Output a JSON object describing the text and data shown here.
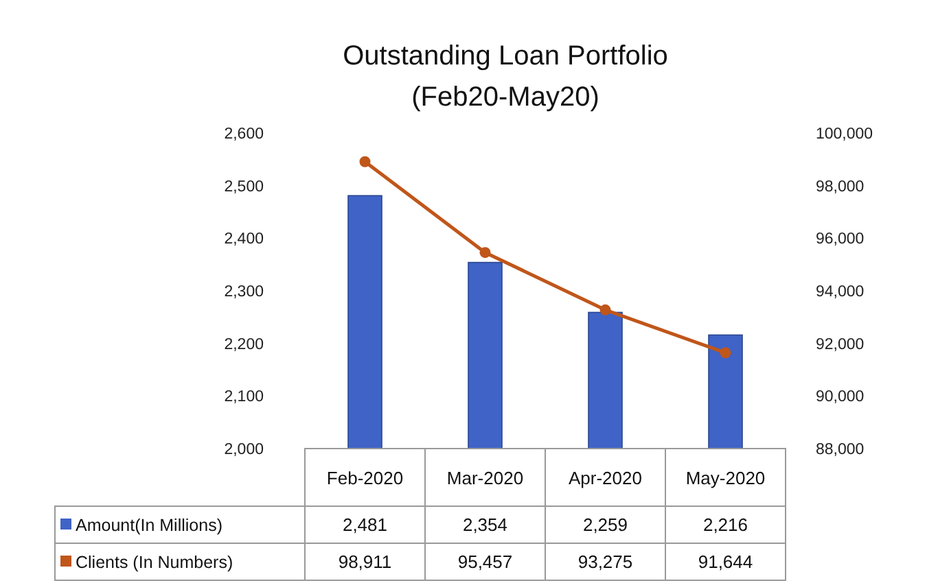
{
  "chart_data": {
    "type": "bar",
    "title": "Outstanding Loan Portfolio",
    "subtitle": "(Feb20-May20)",
    "categories": [
      "Feb-2020",
      "Mar-2020",
      "Apr-2020",
      "May-2020"
    ],
    "series": [
      {
        "name": "Amount(In Millions)",
        "color": "#3f63c6",
        "values": [
          2481,
          2354,
          2259,
          2216
        ],
        "value_labels": [
          "2,481",
          "2,354",
          "2,259",
          "2,216"
        ]
      },
      {
        "name": "Clients (In Numbers)",
        "type": "line",
        "axis": "y2",
        "color": "#c0561a",
        "values": [
          98911,
          95457,
          93275,
          91644
        ],
        "value_labels": [
          "98,911",
          "95,457",
          "93,275",
          "91,644"
        ]
      }
    ],
    "ylim": [
      2000,
      2600
    ],
    "yticks": [
      {
        "value": 2000,
        "label": "2,000"
      },
      {
        "value": 2100,
        "label": "2,100"
      },
      {
        "value": 2200,
        "label": "2,200"
      },
      {
        "value": 2300,
        "label": "2,300"
      },
      {
        "value": 2400,
        "label": "2,400"
      },
      {
        "value": 2500,
        "label": "2,500"
      },
      {
        "value": 2600,
        "label": "2,600"
      }
    ],
    "y2lim": [
      88000,
      100000
    ],
    "y2ticks": [
      {
        "value": 88000,
        "label": "88,000"
      },
      {
        "value": 90000,
        "label": "90,000"
      },
      {
        "value": 92000,
        "label": "92,000"
      },
      {
        "value": 94000,
        "label": "94,000"
      },
      {
        "value": 96000,
        "label": "96,000"
      },
      {
        "value": 98000,
        "label": "98,000"
      },
      {
        "value": 100000,
        "label": "100,000"
      }
    ],
    "marker": "circle",
    "grid": false,
    "legend": "bottom left"
  }
}
